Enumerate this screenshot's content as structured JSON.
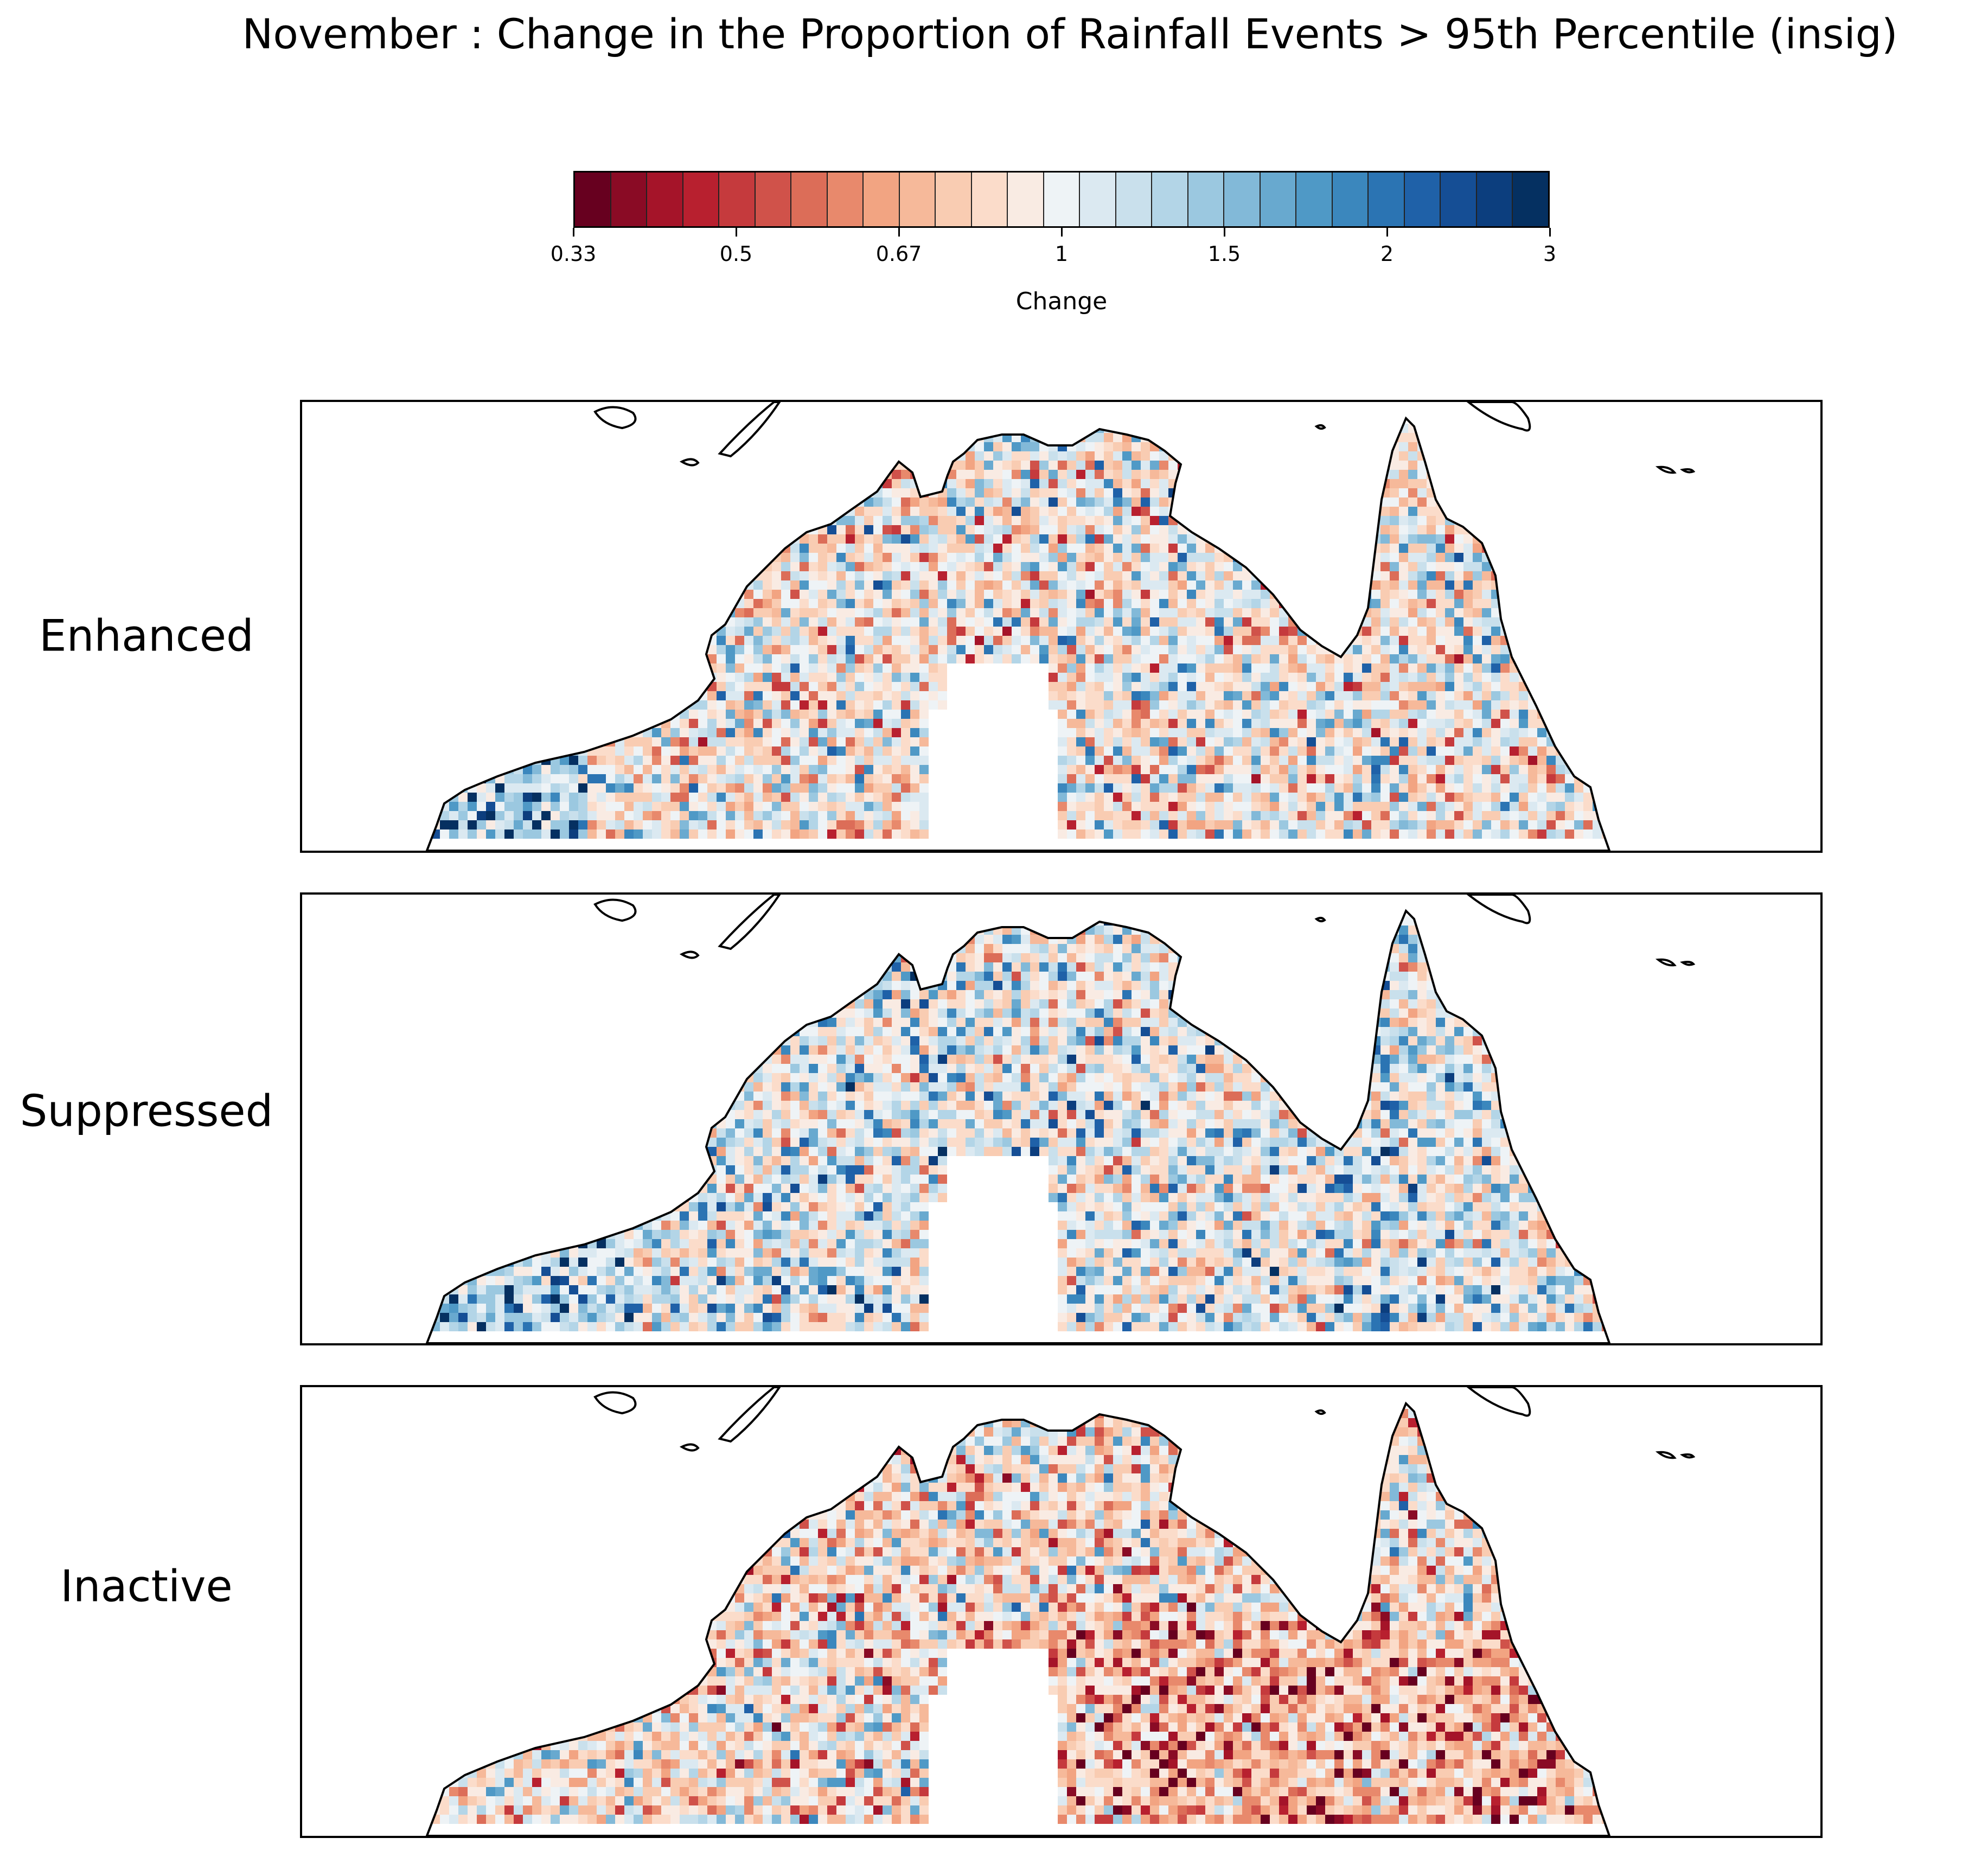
{
  "title": "November : Change in the Proportion of Rainfall Events > 95th Percentile (insig)",
  "colorbar": {
    "label": "Change",
    "tick_labels": [
      "0.33",
      "0.5",
      "0.67",
      "1",
      "1.5",
      "2",
      "3"
    ],
    "colors": [
      "#67001f",
      "#8a0b25",
      "#a51429",
      "#b8202f",
      "#c53a3d",
      "#d0524a",
      "#dc6d58",
      "#e8896c",
      "#f2a482",
      "#f6b99a",
      "#f9ccb2",
      "#fbdcca",
      "#f9ebe3",
      "#eef3f6",
      "#dbe9f1",
      "#c9e0ec",
      "#b3d5e7",
      "#9bc8e0",
      "#82b9d8",
      "#68a9cf",
      "#4f99c6",
      "#3b87bd",
      "#2b74b3",
      "#1f61a8",
      "#154e95",
      "#0c3e7e",
      "#053061"
    ]
  },
  "panels": [
    {
      "label": "Enhanced",
      "anomaly_mix": "mixed red and blue, strong blue in southwest"
    },
    {
      "label": "Suppressed",
      "anomaly_mix": "mixed, more blue in west and centre"
    },
    {
      "label": "Inactive",
      "anomaly_mix": "mostly red in south and east"
    }
  ]
}
